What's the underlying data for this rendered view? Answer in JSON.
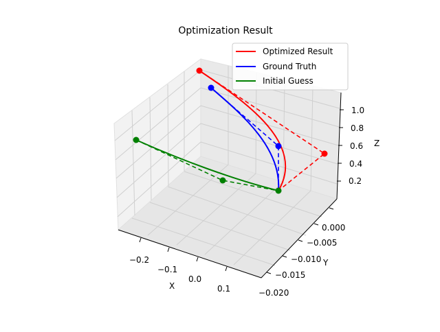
{
  "chart_data": {
    "type": "line3d",
    "title": "Optimization Result",
    "xlabel": "X",
    "ylabel": "Y",
    "zlabel": "Z",
    "xticks": [
      "−0.2",
      "−0.1",
      "0.0",
      "0.1"
    ],
    "yticks": [
      "−0.020",
      "−0.015",
      "−0.010",
      "−0.005",
      "0.000"
    ],
    "zticks": [
      "0.2",
      "0.4",
      "0.6",
      "0.8",
      "1.0"
    ],
    "grid": true,
    "legend_position": "top-right",
    "series": [
      {
        "name": "Optimized Result",
        "color": "#ff0000"
      },
      {
        "name": "Ground Truth",
        "color": "#0000ff"
      },
      {
        "name": "Initial Guess",
        "color": "#008000"
      }
    ]
  }
}
